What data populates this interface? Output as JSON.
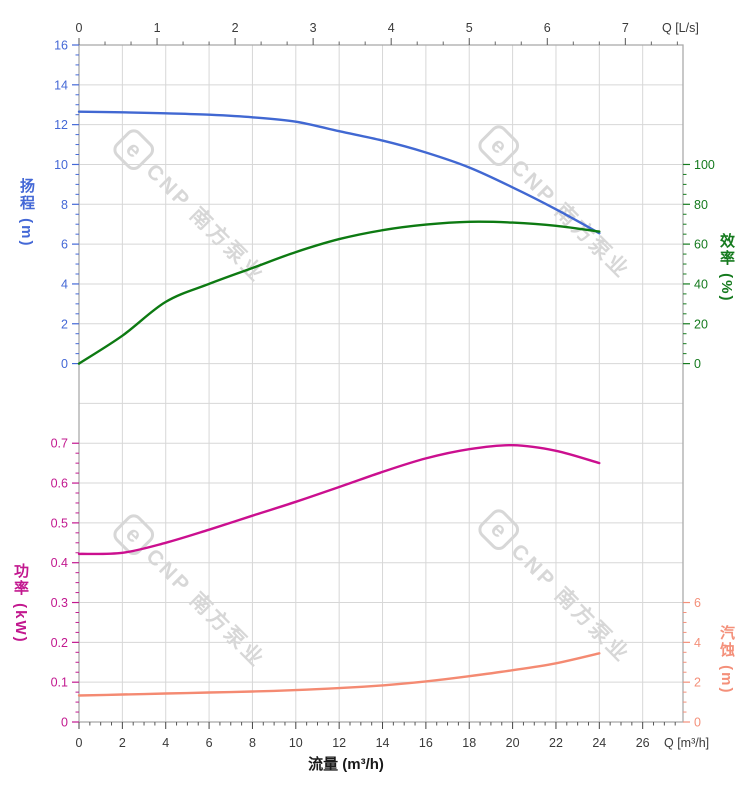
{
  "watermark": {
    "logo_letter": "e",
    "text": "CNP 南方泵业",
    "color": "rgba(150,150,150,0.38)"
  },
  "chart_data": {
    "type": "line",
    "title": "",
    "x_axis": {
      "title": "流量 (m³/h)",
      "end_label": "Q [m³/h]",
      "ticks": [
        0,
        2,
        4,
        6,
        8,
        10,
        12,
        14,
        16,
        18,
        20,
        22,
        24,
        26
      ],
      "minor_step": 0.5,
      "range": [
        0,
        27.85
      ],
      "text_color": "#3a3a3a"
    },
    "top_axis": {
      "end_label": "Q [L/s]",
      "ticks": [
        0,
        1,
        2,
        3,
        4,
        5,
        6,
        7
      ],
      "range": [
        0,
        7.74
      ],
      "text_color": "#3a3a3a"
    },
    "y_axes": {
      "head": {
        "title": "扬程 (m)",
        "color": "#4468d6",
        "curve_color": "#4168d2",
        "ticks": [
          0,
          2,
          4,
          6,
          8,
          10,
          12,
          14,
          16
        ],
        "minor_step": 0.5,
        "range": [
          0,
          16
        ]
      },
      "efficiency": {
        "title": "效率 (%)",
        "color": "#157a1e",
        "curve_color": "#0d7a12",
        "ticks": [
          0,
          20,
          40,
          60,
          80,
          100
        ],
        "minor_step": 5,
        "range": [
          0,
          100
        ]
      },
      "power": {
        "title": "功率 (kW)",
        "color": "#c2188f",
        "curve_color": "#cb0f8f",
        "tick_labels": [
          "0",
          "0.1",
          "0.2",
          "0.3",
          "0.4",
          "0.5",
          "0.6",
          "0.7"
        ],
        "ticks": [
          0,
          0.1,
          0.2,
          0.3,
          0.4,
          0.5,
          0.6,
          0.7
        ],
        "minor_step": 0.025,
        "range": [
          0,
          0.7
        ]
      },
      "npsh": {
        "title": "汽蚀 (m)",
        "color": "#f4907a",
        "curve_color": "#f48a72",
        "ticks": [
          0,
          2,
          4,
          6
        ],
        "minor_step": 0.5,
        "range": [
          0,
          6
        ]
      }
    },
    "grid": {
      "on": true,
      "color": "#d7d7d7",
      "frame_color": "#ababab"
    },
    "legend": {
      "position": "none"
    },
    "series": [
      {
        "name": "head-curve",
        "label": "扬程",
        "axis": "head",
        "unit": "m",
        "points": [
          [
            0,
            12.65
          ],
          [
            2,
            12.62
          ],
          [
            4,
            12.57
          ],
          [
            6,
            12.5
          ],
          [
            8,
            12.37
          ],
          [
            10,
            12.15
          ],
          [
            12,
            11.67
          ],
          [
            14,
            11.2
          ],
          [
            16,
            10.6
          ],
          [
            18,
            9.85
          ],
          [
            20,
            8.85
          ],
          [
            22,
            7.75
          ],
          [
            24,
            6.55
          ]
        ]
      },
      {
        "name": "efficiency-curve",
        "label": "效率",
        "axis": "efficiency",
        "unit": "%",
        "points": [
          [
            0,
            0
          ],
          [
            2,
            14
          ],
          [
            4,
            31
          ],
          [
            6,
            40
          ],
          [
            8,
            48
          ],
          [
            10,
            56
          ],
          [
            12,
            62.5
          ],
          [
            14,
            67
          ],
          [
            16,
            69.8
          ],
          [
            18,
            71.2
          ],
          [
            20,
            70.8
          ],
          [
            22,
            69.2
          ],
          [
            24,
            66.3
          ]
        ]
      },
      {
        "name": "power-curve",
        "label": "功率",
        "axis": "power",
        "unit": "kW",
        "points": [
          [
            0,
            0.422
          ],
          [
            2,
            0.425
          ],
          [
            4,
            0.45
          ],
          [
            6,
            0.483
          ],
          [
            8,
            0.518
          ],
          [
            10,
            0.553
          ],
          [
            12,
            0.59
          ],
          [
            14,
            0.628
          ],
          [
            16,
            0.662
          ],
          [
            18,
            0.685
          ],
          [
            20,
            0.695
          ],
          [
            22,
            0.681
          ],
          [
            24,
            0.65
          ]
        ]
      },
      {
        "name": "npsh-curve",
        "label": "汽蚀",
        "axis": "npsh",
        "unit": "m",
        "points": [
          [
            0,
            1.33
          ],
          [
            2,
            1.38
          ],
          [
            4,
            1.43
          ],
          [
            6,
            1.48
          ],
          [
            8,
            1.53
          ],
          [
            10,
            1.6
          ],
          [
            12,
            1.7
          ],
          [
            14,
            1.84
          ],
          [
            16,
            2.04
          ],
          [
            18,
            2.3
          ],
          [
            20,
            2.6
          ],
          [
            22,
            2.95
          ],
          [
            24,
            3.45
          ]
        ]
      }
    ]
  }
}
